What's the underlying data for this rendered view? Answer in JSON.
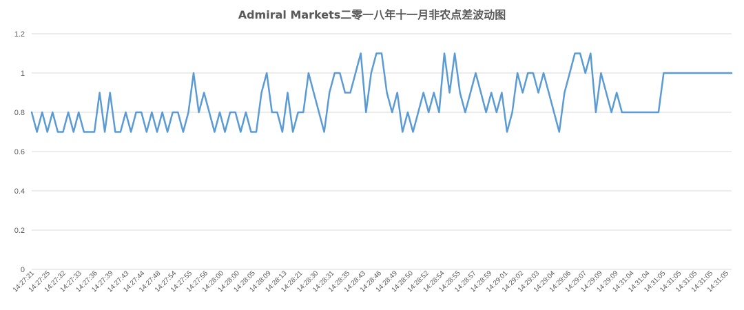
{
  "chart_data": {
    "type": "line",
    "title": "Admiral Markets二零一八年十一月非农点差波动图",
    "xlabel": "",
    "ylabel": "",
    "ylim": [
      0,
      1.2
    ],
    "yticks": [
      "0",
      "0.2",
      "0.4",
      "0.6",
      "0.8",
      "1",
      "1.2"
    ],
    "grid": true,
    "legend": "none",
    "line_color": "#5B9BD5",
    "x_tick_labels": [
      "14:27:21",
      "14:27:25",
      "14:27:32",
      "14:27:33",
      "14:27:36",
      "14:27:39",
      "14:27:43",
      "14:27:44",
      "14:27:48",
      "14:27:54",
      "14:27:55",
      "14:27:56",
      "14:28:00",
      "14:28:00",
      "14:28:05",
      "14:28:09",
      "14:28:13",
      "14:28:21",
      "14:28:30",
      "14:28:31",
      "14:28:35",
      "14:28:43",
      "14:28:46",
      "14:28:49",
      "14:28:50",
      "14:28:52",
      "14:28:54",
      "14:28:55",
      "14:28:57",
      "14:28:59",
      "14:29:01",
      "14:29:02",
      "14:29:03",
      "14:29:04",
      "14:29:06",
      "14:29:07",
      "14:29:09",
      "14:29:09",
      "14:31:04",
      "14:31:04",
      "14:31:05",
      "14:31:05",
      "14:31:05",
      "14:31:05",
      "14:31:05"
    ],
    "values": [
      0.8,
      0.7,
      0.8,
      0.7,
      0.8,
      0.7,
      0.7,
      0.8,
      0.7,
      0.8,
      0.7,
      0.7,
      0.7,
      0.9,
      0.7,
      0.9,
      0.7,
      0.7,
      0.8,
      0.7,
      0.8,
      0.8,
      0.7,
      0.8,
      0.7,
      0.8,
      0.7,
      0.8,
      0.8,
      0.7,
      0.8,
      1.0,
      0.8,
      0.9,
      0.8,
      0.7,
      0.8,
      0.7,
      0.8,
      0.8,
      0.7,
      0.8,
      0.7,
      0.7,
      0.9,
      1.0,
      0.8,
      0.8,
      0.7,
      0.9,
      0.7,
      0.8,
      0.8,
      1.0,
      0.9,
      0.8,
      0.7,
      0.9,
      1.0,
      1.0,
      0.9,
      0.9,
      1.0,
      1.1,
      0.8,
      1.0,
      1.1,
      1.1,
      0.9,
      0.8,
      0.9,
      0.7,
      0.8,
      0.7,
      0.8,
      0.9,
      0.8,
      0.9,
      0.8,
      1.1,
      0.9,
      1.1,
      0.9,
      0.8,
      0.9,
      1.0,
      0.9,
      0.8,
      0.9,
      0.8,
      0.9,
      0.7,
      0.8,
      1.0,
      0.9,
      1.0,
      1.0,
      0.9,
      1.0,
      0.9,
      0.8,
      0.7,
      0.9,
      1.0,
      1.1,
      1.1,
      1.0,
      1.1,
      0.8,
      1.0,
      0.9,
      0.8,
      0.9,
      0.8,
      0.8,
      0.8,
      0.8,
      0.8,
      0.8,
      0.8,
      0.8,
      1.0,
      1.0,
      1.0,
      1.0,
      1.0,
      1.0,
      1.0,
      1.0,
      1.0,
      1.0,
      1.0,
      1.0,
      1.0,
      1.0
    ]
  }
}
